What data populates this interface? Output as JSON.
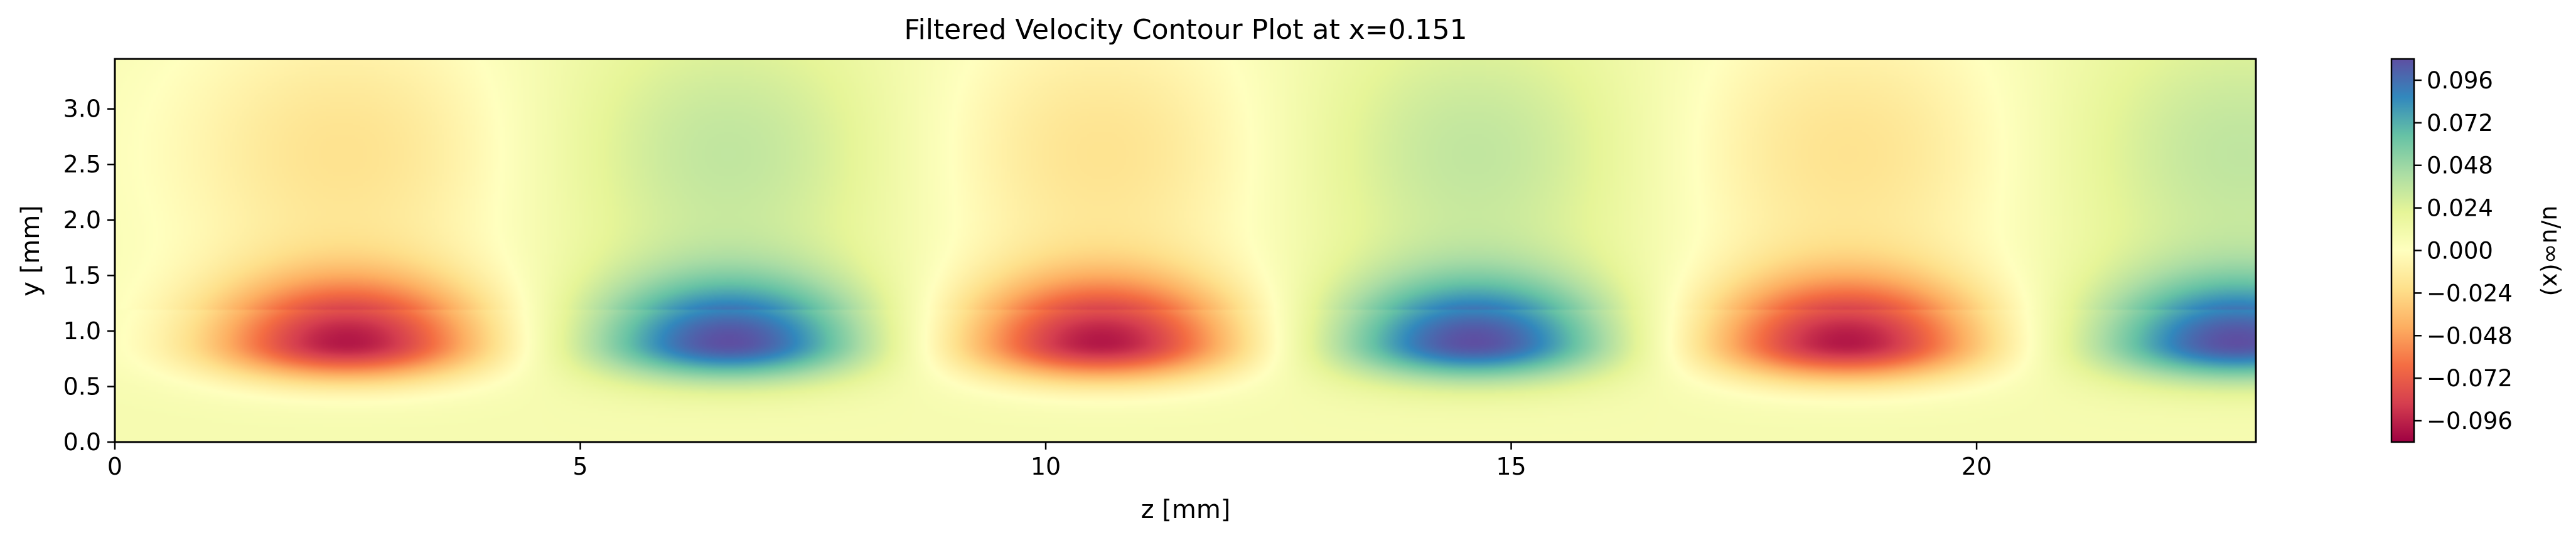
{
  "chart_data": {
    "type": "heatmap",
    "title": "Filtered Velocity Contour Plot at x=0.151",
    "xlabel": "z [mm]",
    "ylabel": "y [mm]",
    "xlim": [
      0,
      23
    ],
    "ylim": [
      0,
      3.45
    ],
    "x_ticks": [
      0,
      5,
      10,
      15,
      20
    ],
    "x_tick_labels": [
      "0",
      "5",
      "10",
      "15",
      "20"
    ],
    "y_ticks": [
      0.0,
      0.5,
      1.0,
      1.5,
      2.0,
      2.5,
      3.0
    ],
    "y_tick_labels": [
      "0.0",
      "0.5",
      "1.0",
      "1.5",
      "2.0",
      "2.5",
      "3.0"
    ],
    "colormap": "Spectral",
    "colorbar": {
      "label": "u/u∞(x)",
      "range": [
        -0.108,
        0.108
      ],
      "ticks": [
        -0.096,
        -0.072,
        -0.048,
        -0.024,
        0.0,
        0.024,
        0.048,
        0.072,
        0.096
      ],
      "tick_labels": [
        "−0.096",
        "−0.072",
        "−0.048",
        "−0.024",
        "0.000",
        "0.024",
        "0.048",
        "0.072",
        "0.096"
      ]
    },
    "field": {
      "description_of_structures": "alternating negative (red) and positive (blue) streaks centered near y≈0.9 mm",
      "structures": [
        {
          "z_center": 2.5,
          "y_center": 0.9,
          "peak_value": -0.108
        },
        {
          "z_center": 6.6,
          "y_center": 0.9,
          "peak_value": 0.1
        },
        {
          "z_center": 10.6,
          "y_center": 0.9,
          "peak_value": -0.108
        },
        {
          "z_center": 14.6,
          "y_center": 0.9,
          "peak_value": 0.1
        },
        {
          "z_center": 18.6,
          "y_center": 0.9,
          "peak_value": -0.108
        },
        {
          "z_center": 22.8,
          "y_center": 0.9,
          "peak_value": 0.1
        }
      ],
      "background_value": 0.008
    },
    "colors": {
      "spectral_stops": [
        "#9e0142",
        "#d53e4f",
        "#f46d43",
        "#fdae61",
        "#fee08b",
        "#ffffbf",
        "#e6f598",
        "#abdda4",
        "#66c2a5",
        "#3288bd",
        "#5e4fa2"
      ]
    }
  }
}
